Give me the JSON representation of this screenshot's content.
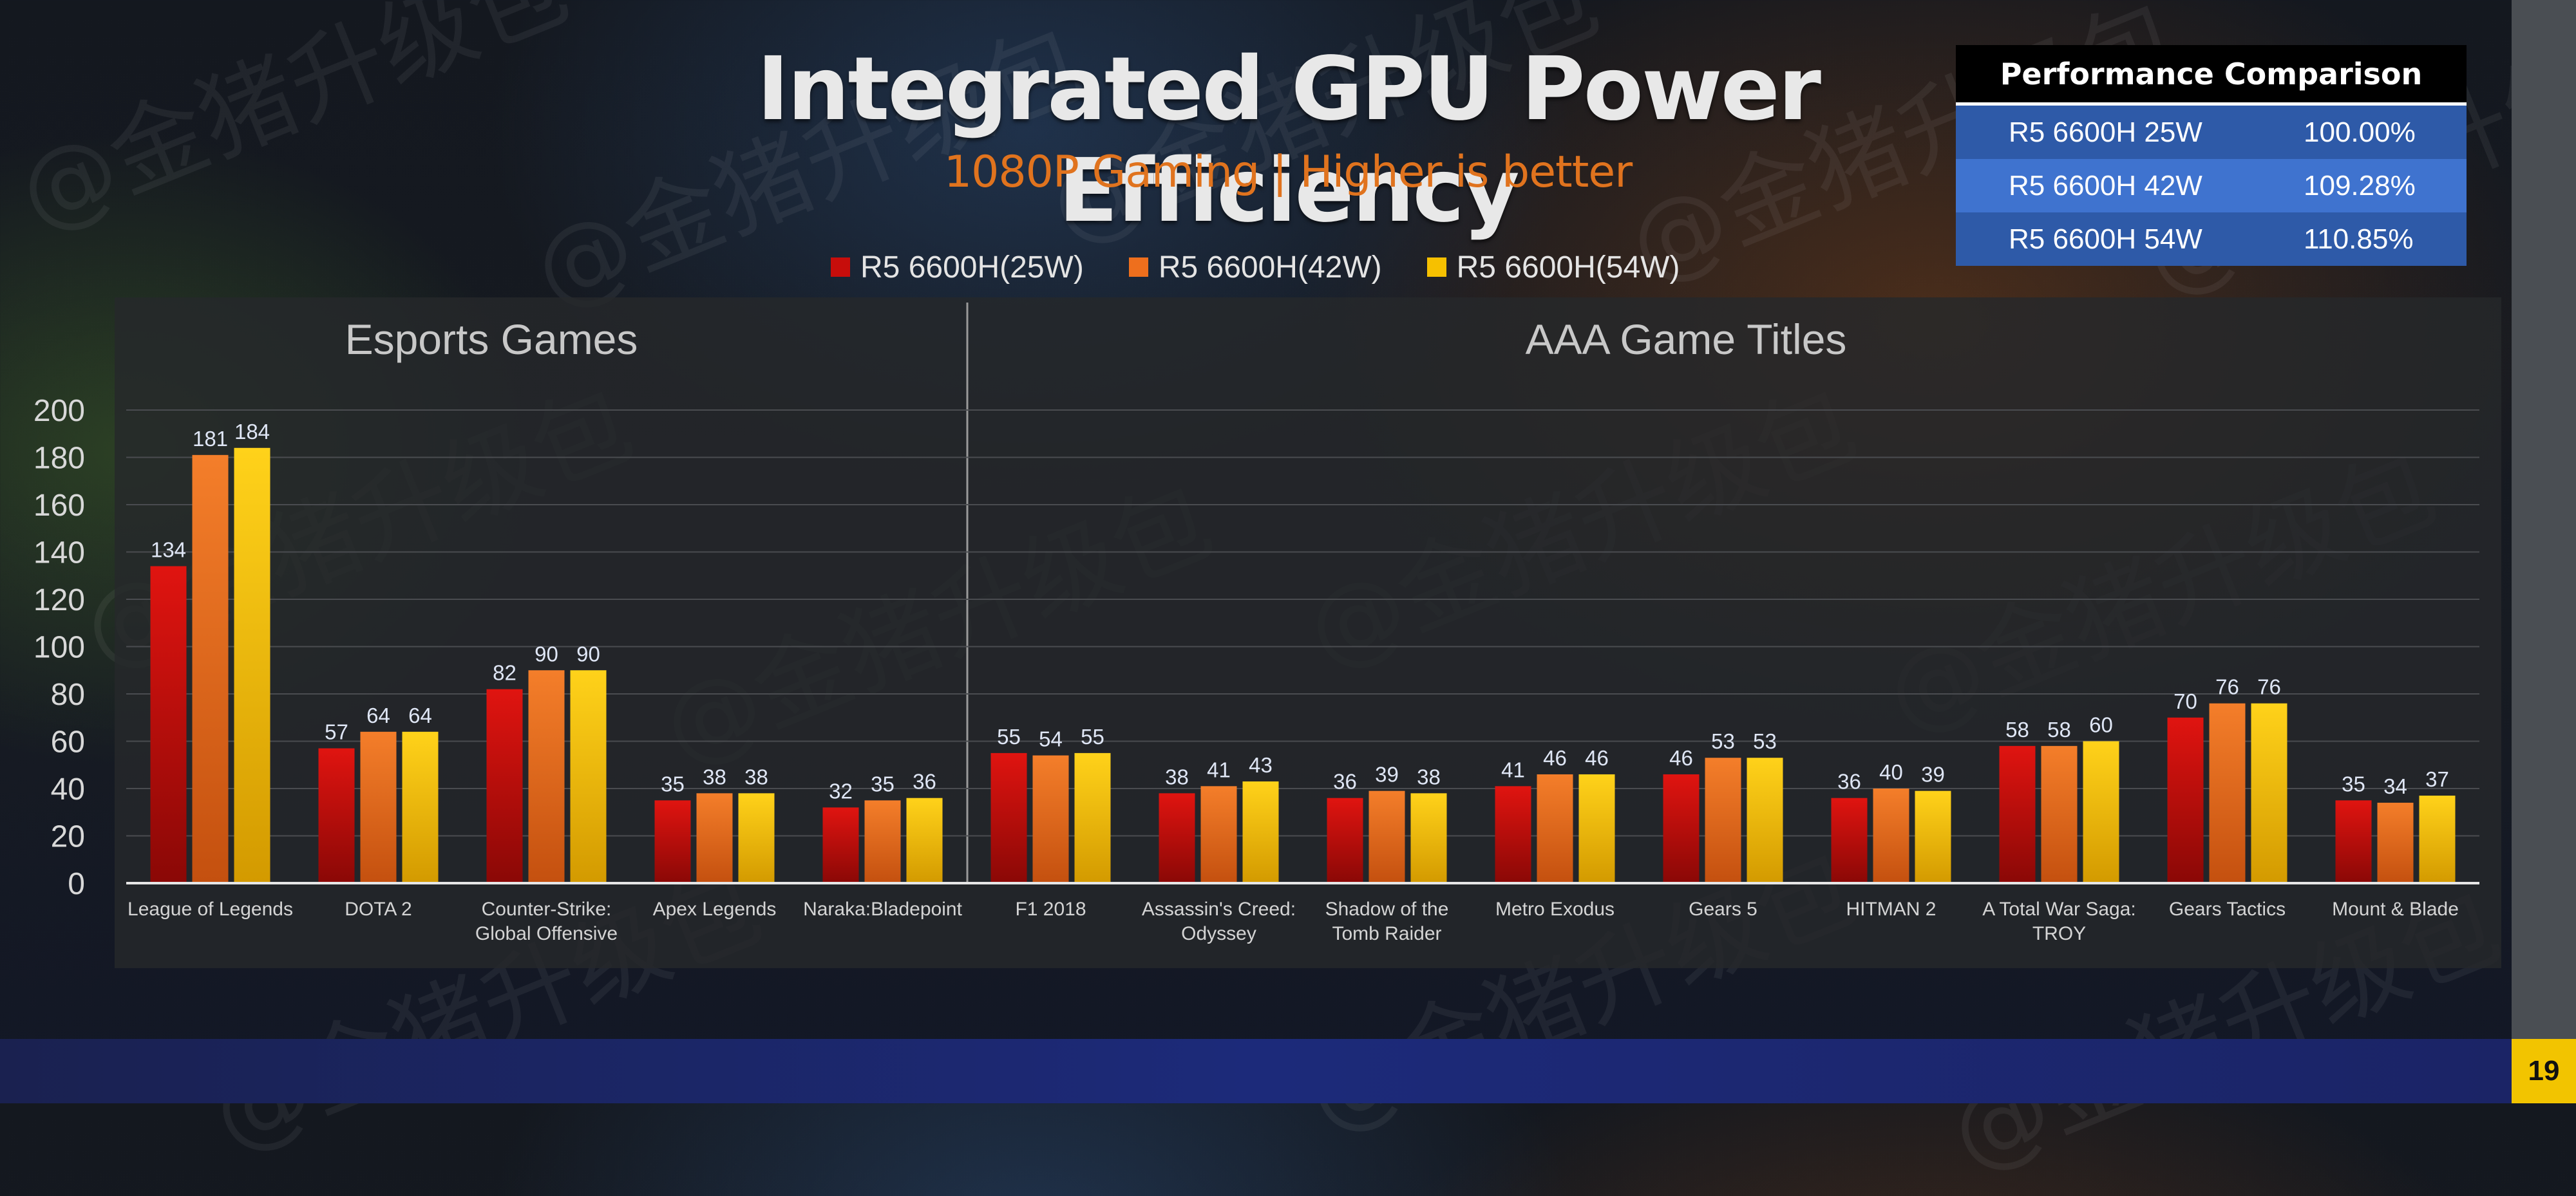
{
  "title": "Integrated GPU Power Efficiency",
  "subtitle": "1080P Gaming | Higher is better",
  "page_number": "19",
  "performance_table": {
    "header": "Performance Comparison",
    "rows": [
      {
        "label": "R5 6600H 25W",
        "value": "100.00%"
      },
      {
        "label": "R5 6600H 42W",
        "value": "109.28%"
      },
      {
        "label": "R5 6600H 54W",
        "value": "110.85%"
      }
    ]
  },
  "colors": {
    "series_25w": "#c70d0b",
    "series_42w": "#ee6f1d",
    "series_54w": "#f6c000",
    "table_row_dark": "#2e5aa8",
    "table_row_light": "#3f73cf"
  },
  "chart_data": {
    "type": "bar",
    "sections": [
      {
        "label": "Esports Games",
        "category_count": 5
      },
      {
        "label": "AAA Game Titles",
        "category_count": 9
      }
    ],
    "categories": [
      "League of Legends",
      "DOTA 2",
      "Counter-Strike:\nGlobal Offensive",
      "Apex Legends",
      "Naraka:Bladepoint",
      "F1 2018",
      "Assassin's Creed:\nOdyssey",
      "Shadow of the\nTomb Raider",
      "Metro Exodus",
      "Gears 5",
      "HITMAN 2",
      "A Total War Saga:\nTROY",
      "Gears Tactics",
      "Mount & Blade"
    ],
    "series": [
      {
        "name": "R5 6600H(25W)",
        "values": [
          134,
          57,
          82,
          35,
          32,
          55,
          38,
          36,
          41,
          46,
          36,
          58,
          70,
          35
        ]
      },
      {
        "name": "R5 6600H(42W)",
        "values": [
          181,
          64,
          90,
          38,
          35,
          54,
          41,
          39,
          46,
          53,
          40,
          58,
          76,
          34
        ]
      },
      {
        "name": "R5 6600H(54W)",
        "values": [
          184,
          64,
          90,
          38,
          36,
          55,
          43,
          38,
          46,
          53,
          39,
          60,
          76,
          37
        ]
      }
    ],
    "ylim": [
      0,
      200
    ],
    "y_ticks": [
      0,
      20,
      40,
      60,
      80,
      100,
      120,
      140,
      160,
      180,
      200
    ],
    "grid": true,
    "legend_position": "top"
  }
}
